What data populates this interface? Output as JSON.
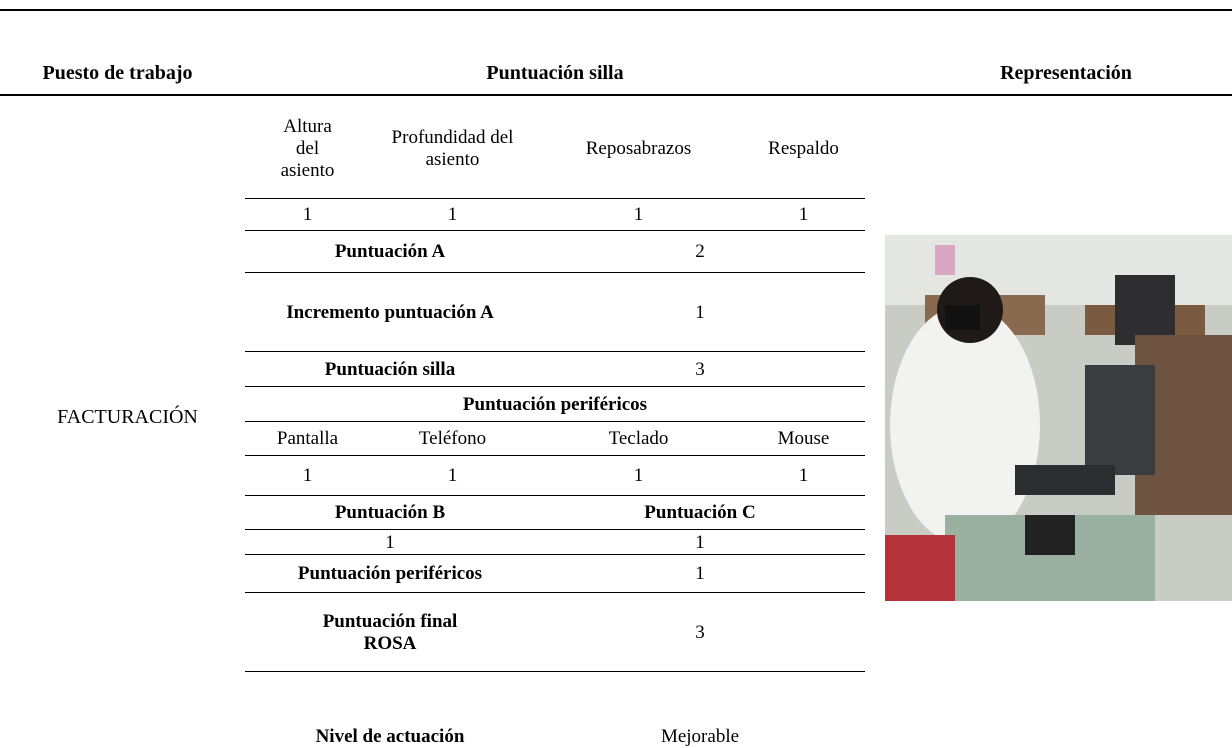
{
  "table": {
    "headers": [
      "Puesto de trabajo",
      "Puntuación silla",
      "Representación"
    ],
    "job": "FACTURACIÓN",
    "rows": [
      [
        "Altura del asiento",
        "Profundidad del asiento",
        "Reposabrazos",
        "Respaldo"
      ],
      [
        1,
        1,
        1,
        1
      ],
      [
        "Puntuación A",
        2
      ],
      [
        "Incremento puntuación A",
        1
      ],
      [
        "Puntuación silla",
        3
      ],
      [
        "Puntuación periféricos"
      ],
      [
        "Pantalla",
        "Teléfono",
        "Teclado",
        "Mouse"
      ],
      [
        1,
        1,
        1,
        1
      ],
      [
        "Puntuación B",
        "Puntuación C"
      ],
      [
        1,
        1
      ],
      [
        "Puntuación periféricos",
        1
      ],
      [
        "Puntuación final ROSA",
        3
      ],
      [
        "Nivel de actuación",
        "Mejorable"
      ]
    ]
  }
}
